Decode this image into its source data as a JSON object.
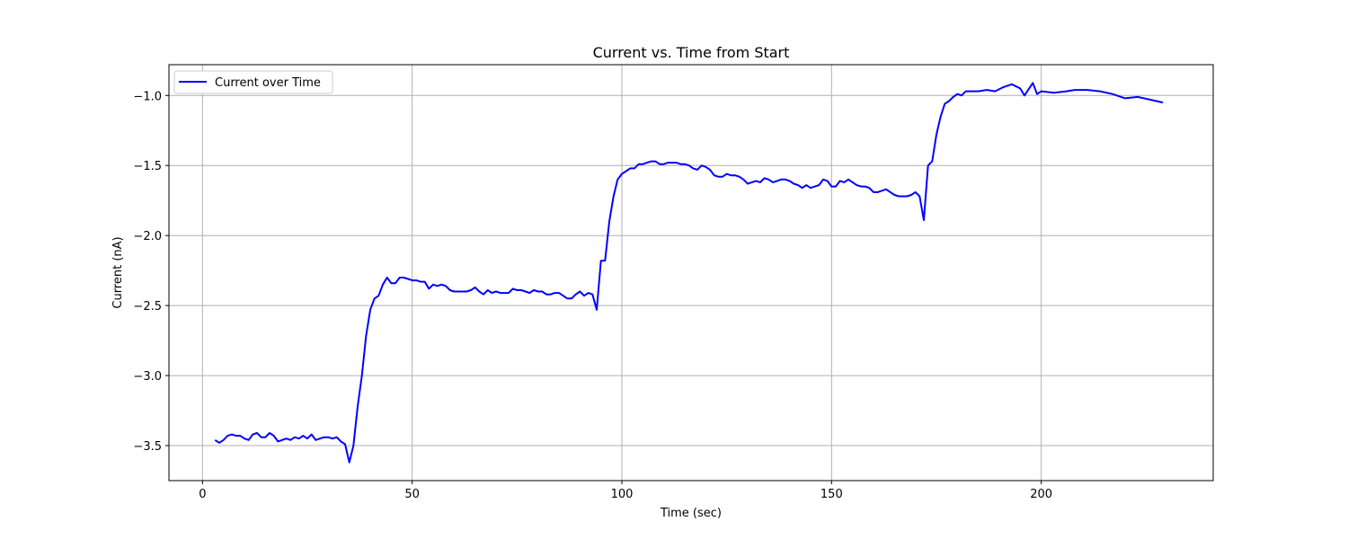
{
  "chart_data": {
    "type": "line",
    "title": "Current vs. Time from Start",
    "xlabel": "Time (sec)",
    "ylabel": "Current (nA)",
    "xlim": [
      -8,
      241
    ],
    "ylim": [
      -3.75,
      -0.78
    ],
    "xticks": [
      0,
      50,
      100,
      150,
      200
    ],
    "yticks": [
      -3.5,
      -3.0,
      -2.5,
      -2.0,
      -1.5,
      -1.0
    ],
    "xtick_labels": [
      "0",
      "50",
      "100",
      "150",
      "200"
    ],
    "ytick_labels": [
      "−3.5",
      "−3.0",
      "−2.5",
      "−2.0",
      "−1.5",
      "−1.0"
    ],
    "grid": true,
    "legend_position": "top-left",
    "colors": {
      "series": "#0000ff",
      "grid": "#b0b0b0",
      "axes": "#000000"
    },
    "series": [
      {
        "name": "Current over Time",
        "x": [
          3,
          4,
          5,
          6,
          7,
          8,
          9,
          10,
          11,
          12,
          13,
          14,
          15,
          16,
          17,
          18,
          19,
          20,
          21,
          22,
          23,
          24,
          25,
          26,
          27,
          28,
          29,
          30,
          31,
          32,
          33,
          34,
          35,
          36,
          37,
          38,
          39,
          40,
          41,
          42,
          43,
          44,
          45,
          46,
          47,
          48,
          49,
          50,
          51,
          52,
          53,
          54,
          55,
          56,
          57,
          58,
          59,
          60,
          61,
          62,
          63,
          64,
          65,
          66,
          67,
          68,
          69,
          70,
          71,
          72,
          73,
          74,
          75,
          76,
          77,
          78,
          79,
          80,
          81,
          82,
          83,
          84,
          85,
          86,
          87,
          88,
          89,
          90,
          91,
          92,
          93,
          94,
          95,
          96,
          97,
          98,
          99,
          100,
          101,
          102,
          103,
          104,
          105,
          106,
          107,
          108,
          109,
          110,
          111,
          112,
          113,
          114,
          115,
          116,
          117,
          118,
          119,
          120,
          121,
          122,
          123,
          124,
          125,
          126,
          127,
          128,
          129,
          130,
          131,
          132,
          133,
          134,
          135,
          136,
          137,
          138,
          139,
          140,
          141,
          142,
          143,
          144,
          145,
          146,
          147,
          148,
          149,
          150,
          151,
          152,
          153,
          154,
          155,
          156,
          157,
          158,
          159,
          160,
          161,
          162,
          163,
          164,
          165,
          166,
          167,
          168,
          169,
          170,
          171,
          172,
          173,
          174,
          175,
          176,
          177,
          178,
          179,
          180,
          181,
          182,
          183,
          185,
          187,
          189,
          191,
          193,
          195,
          196,
          198,
          199,
          200,
          203,
          206,
          208,
          211,
          214,
          217,
          220,
          223,
          226,
          229
        ],
        "values": [
          -3.46,
          -3.48,
          -3.46,
          -3.43,
          -3.42,
          -3.43,
          -3.43,
          -3.45,
          -3.46,
          -3.42,
          -3.41,
          -3.44,
          -3.44,
          -3.41,
          -3.43,
          -3.47,
          -3.46,
          -3.45,
          -3.46,
          -3.44,
          -3.45,
          -3.43,
          -3.45,
          -3.42,
          -3.46,
          -3.45,
          -3.44,
          -3.44,
          -3.45,
          -3.44,
          -3.47,
          -3.49,
          -3.62,
          -3.5,
          -3.22,
          -3.0,
          -2.72,
          -2.53,
          -2.45,
          -2.43,
          -2.35,
          -2.3,
          -2.34,
          -2.34,
          -2.3,
          -2.3,
          -2.31,
          -2.32,
          -2.32,
          -2.33,
          -2.33,
          -2.38,
          -2.35,
          -2.36,
          -2.35,
          -2.36,
          -2.39,
          -2.4,
          -2.4,
          -2.4,
          -2.4,
          -2.39,
          -2.37,
          -2.4,
          -2.42,
          -2.39,
          -2.41,
          -2.4,
          -2.41,
          -2.41,
          -2.41,
          -2.38,
          -2.39,
          -2.39,
          -2.4,
          -2.41,
          -2.39,
          -2.4,
          -2.4,
          -2.42,
          -2.42,
          -2.41,
          -2.41,
          -2.43,
          -2.45,
          -2.45,
          -2.42,
          -2.4,
          -2.43,
          -2.41,
          -2.42,
          -2.53,
          -2.18,
          -2.18,
          -1.9,
          -1.72,
          -1.6,
          -1.56,
          -1.54,
          -1.52,
          -1.52,
          -1.49,
          -1.49,
          -1.48,
          -1.47,
          -1.47,
          -1.49,
          -1.49,
          -1.48,
          -1.48,
          -1.48,
          -1.49,
          -1.49,
          -1.5,
          -1.52,
          -1.53,
          -1.5,
          -1.51,
          -1.53,
          -1.57,
          -1.58,
          -1.58,
          -1.56,
          -1.57,
          -1.57,
          -1.58,
          -1.6,
          -1.63,
          -1.62,
          -1.61,
          -1.62,
          -1.59,
          -1.6,
          -1.62,
          -1.61,
          -1.6,
          -1.6,
          -1.61,
          -1.63,
          -1.64,
          -1.66,
          -1.64,
          -1.66,
          -1.65,
          -1.64,
          -1.6,
          -1.61,
          -1.65,
          -1.65,
          -1.61,
          -1.62,
          -1.6,
          -1.62,
          -1.64,
          -1.65,
          -1.65,
          -1.66,
          -1.69,
          -1.69,
          -1.68,
          -1.67,
          -1.69,
          -1.71,
          -1.72,
          -1.72,
          -1.72,
          -1.71,
          -1.69,
          -1.72,
          -1.89,
          -1.5,
          -1.47,
          -1.28,
          -1.15,
          -1.06,
          -1.04,
          -1.01,
          -0.99,
          -1.0,
          -0.97,
          -0.97,
          -0.97,
          -0.96,
          -0.97,
          -0.94,
          -0.92,
          -0.95,
          -1.0,
          -0.91,
          -0.99,
          -0.97,
          -0.98,
          -0.97,
          -0.96,
          -0.96,
          -0.97,
          -0.99,
          -1.02,
          -1.01,
          -1.03,
          -1.05
        ]
      }
    ]
  }
}
